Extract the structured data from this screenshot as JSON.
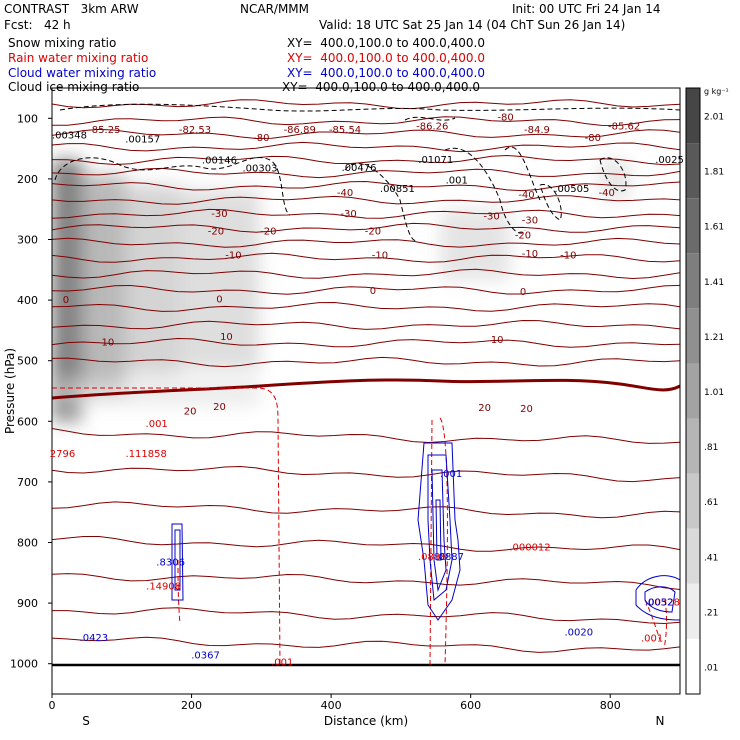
{
  "header": {
    "title": "CONTRAST   3km ARW",
    "center": "NCAR/MMM",
    "init": "Init: 00 UTC Fri 24 Jan 14",
    "fcst": "Fcst:   42 h",
    "valid": "Valid: 18 UTC Sat 25 Jan 14 (04 ChT Sun 26 Jan 14)"
  },
  "fields": [
    {
      "name": "Snow mixing ratio",
      "xy": "XY=  400.0,100.0 to 400.0,400.0",
      "color": "#000000"
    },
    {
      "name": "Rain water mixing ratio",
      "xy": "XY=  400.0,100.0 to 400.0,400.0",
      "color": "#dd0000"
    },
    {
      "name": "Cloud water mixing ratio",
      "xy": "XY=  400.0,100.0 to 400.0,400.0",
      "color": "#0000cc"
    },
    {
      "name": "Cloud ice mixing ratio",
      "xy": "XY=  400.0,100.0 to 400.0,400.0",
      "color": "#000000"
    }
  ],
  "colorbar": {
    "unit": "g kg⁻¹",
    "labels": [
      "2.01",
      "1.81",
      "1.61",
      "1.41",
      "1.21",
      "1.01",
      ".81",
      ".61",
      ".41",
      ".21",
      ".01"
    ]
  },
  "chart_data": {
    "type": "contour cross-section",
    "xlabel": "Distance (km)",
    "ylabel": "Pressure (hPa)",
    "xlim": [
      0,
      900
    ],
    "ylim": [
      1050,
      50
    ],
    "x_ticks": [
      "0",
      "200",
      "400",
      "600",
      "800"
    ],
    "x_end_labels": {
      "left": "S",
      "right": "N"
    },
    "y_ticks": [
      "100",
      "200",
      "300",
      "400",
      "500",
      "600",
      "700",
      "800",
      "900",
      "1000"
    ],
    "temperature_isotherms": [
      {
        "label": "-85.25",
        "x": 75,
        "p": 118
      },
      {
        "label": "-82.53",
        "x": 205,
        "p": 118
      },
      {
        "label": "-86.89",
        "x": 355,
        "p": 118
      },
      {
        "label": "-85.54",
        "x": 420,
        "p": 118
      },
      {
        "label": "-86.26",
        "x": 545,
        "p": 112
      },
      {
        "label": "-84.9",
        "x": 695,
        "p": 118
      },
      {
        "label": "-85.62",
        "x": 820,
        "p": 112
      },
      {
        "label": "-80",
        "x": 300,
        "p": 131
      },
      {
        "label": "-80",
        "x": 650,
        "p": 97
      },
      {
        "label": "-80",
        "x": 775,
        "p": 131
      },
      {
        "label": "-40",
        "x": 420,
        "p": 222
      },
      {
        "label": "-40",
        "x": 680,
        "p": 225
      },
      {
        "label": "-40",
        "x": 795,
        "p": 222
      },
      {
        "label": "-30",
        "x": 240,
        "p": 256
      },
      {
        "label": "-30",
        "x": 425,
        "p": 256
      },
      {
        "label": "-30",
        "x": 630,
        "p": 260
      },
      {
        "label": "-30",
        "x": 685,
        "p": 267
      },
      {
        "label": "-20",
        "x": 235,
        "p": 285
      },
      {
        "label": "-20",
        "x": 310,
        "p": 285
      },
      {
        "label": "-20",
        "x": 460,
        "p": 285
      },
      {
        "label": "-20",
        "x": 675,
        "p": 292
      },
      {
        "label": "-10",
        "x": 260,
        "p": 325
      },
      {
        "label": "-10",
        "x": 470,
        "p": 325
      },
      {
        "label": "-10",
        "x": 685,
        "p": 322
      },
      {
        "label": "-10",
        "x": 740,
        "p": 325
      },
      {
        "label": "0",
        "x": 20,
        "p": 398
      },
      {
        "label": "0",
        "x": 240,
        "p": 397
      },
      {
        "label": "0",
        "x": 460,
        "p": 383
      },
      {
        "label": "0",
        "x": 675,
        "p": 385
      },
      {
        "label": "10",
        "x": 250,
        "p": 459
      },
      {
        "label": "10",
        "x": 80,
        "p": 468
      },
      {
        "label": "10",
        "x": 638,
        "p": 464
      },
      {
        "label": "20",
        "x": 240,
        "p": 575
      },
      {
        "label": "20",
        "x": 198,
        "p": 582
      },
      {
        "label": "20",
        "x": 620,
        "p": 576
      },
      {
        "label": "20",
        "x": 680,
        "p": 578
      }
    ],
    "maxima": [
      {
        "label": ".00348",
        "x": 25,
        "p": 127,
        "field": "snow"
      },
      {
        "label": ".00157",
        "x": 130,
        "p": 133,
        "field": "snow"
      },
      {
        "label": ".00146",
        "x": 240,
        "p": 168,
        "field": "snow"
      },
      {
        "label": ".00303",
        "x": 298,
        "p": 181,
        "field": "snow"
      },
      {
        "label": ".00476",
        "x": 440,
        "p": 180,
        "field": "snow"
      },
      {
        "label": ".01071",
        "x": 550,
        "p": 167,
        "field": "snow"
      },
      {
        "label": ".00851",
        "x": 495,
        "p": 215,
        "field": "snow"
      },
      {
        "label": ".001",
        "x": 580,
        "p": 201,
        "field": "snow"
      },
      {
        "label": ".00505",
        "x": 745,
        "p": 215,
        "field": "snow"
      },
      {
        "label": ".0025",
        "x": 885,
        "p": 167,
        "field": "snow"
      },
      {
        "label": "2796",
        "x": 15,
        "p": 652,
        "field": "rain"
      },
      {
        "label": ".111858",
        "x": 135,
        "p": 652,
        "field": "rain"
      },
      {
        "label": ".000012",
        "x": 685,
        "p": 807,
        "field": "rain"
      },
      {
        "label": ".001",
        "x": 150,
        "p": 603,
        "field": "rain"
      },
      {
        "label": ".001",
        "x": 330,
        "p": 996,
        "field": "rain"
      },
      {
        "label": ".001",
        "x": 860,
        "p": 957,
        "field": "rain"
      },
      {
        "label": ".14908",
        "x": 160,
        "p": 871,
        "field": "rain"
      },
      {
        "label": ".0888",
        "x": 545,
        "p": 822,
        "field": "rain"
      },
      {
        "label": ".00328",
        "x": 875,
        "p": 897,
        "field": "rain"
      },
      {
        "label": ".8306",
        "x": 170,
        "p": 831,
        "field": "cloud"
      },
      {
        "label": ".0423",
        "x": 60,
        "p": 956,
        "field": "cloud"
      },
      {
        "label": ".0367",
        "x": 220,
        "p": 985,
        "field": "cloud"
      },
      {
        "label": ".0020",
        "x": 755,
        "p": 947,
        "field": "cloud"
      },
      {
        "label": ".001",
        "x": 572,
        "p": 685,
        "field": "cloud"
      },
      {
        "label": ".0887",
        "x": 570,
        "p": 822,
        "field": "cloud"
      },
      {
        "label": ".0052",
        "x": 870,
        "p": 897,
        "field": "cloud"
      }
    ]
  }
}
